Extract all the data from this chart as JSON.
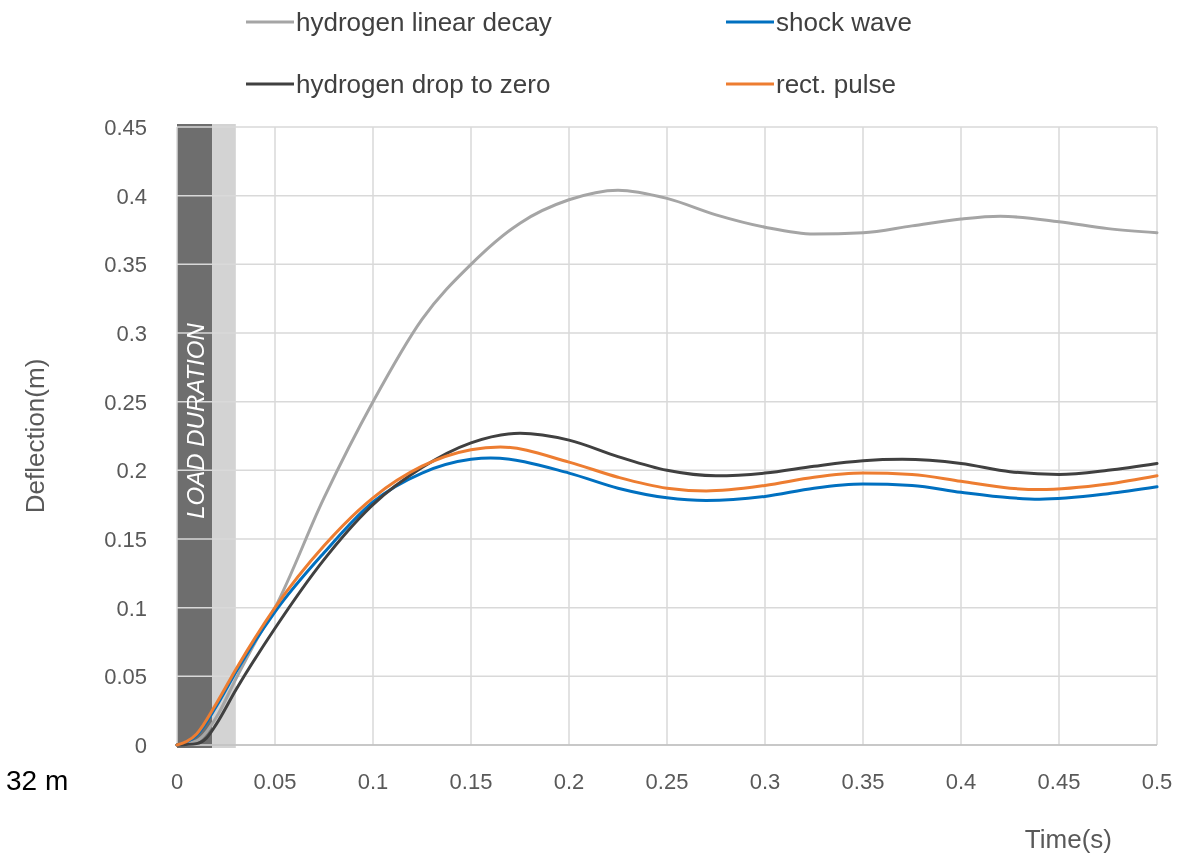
{
  "chart_data": {
    "type": "line",
    "xlabel": "Time(s)",
    "ylabel": "Deflection(m)",
    "xlim": [
      0,
      0.5
    ],
    "ylim": [
      0,
      0.45
    ],
    "xticks": [
      0,
      0.05,
      0.1,
      0.15,
      0.2,
      0.25,
      0.3,
      0.35,
      0.4,
      0.45,
      0.5
    ],
    "yticks": [
      0,
      0.05,
      0.1,
      0.15,
      0.2,
      0.25,
      0.3,
      0.35,
      0.4,
      0.45
    ],
    "grid": true,
    "legend": "top",
    "line_style": "solid",
    "marker": "none",
    "bands": [
      {
        "axis": "x",
        "from": 0,
        "to": 0.018,
        "color": "#6e6e6e"
      },
      {
        "axis": "x",
        "from": 0.018,
        "to": 0.03,
        "color": "#d3d3d3"
      }
    ],
    "annotations": [
      "LOAD DURATION",
      "32 m"
    ],
    "series": [
      {
        "name": "hydrogen linear decay",
        "color": "#a5a5a5",
        "x": [
          0,
          0.01,
          0.02,
          0.03,
          0.04,
          0.05,
          0.075,
          0.1,
          0.125,
          0.15,
          0.175,
          0.2,
          0.225,
          0.25,
          0.275,
          0.3,
          0.325,
          0.35,
          0.375,
          0.4,
          0.42,
          0.45,
          0.475,
          0.5
        ],
        "values": [
          0,
          0.003,
          0.02,
          0.048,
          0.075,
          0.1,
          0.18,
          0.25,
          0.31,
          0.35,
          0.38,
          0.397,
          0.404,
          0.398,
          0.386,
          0.377,
          0.372,
          0.373,
          0.378,
          0.383,
          0.385,
          0.381,
          0.376,
          0.373
        ]
      },
      {
        "name": "shock wave",
        "color": "#0070c0",
        "x": [
          0,
          0.01,
          0.02,
          0.03,
          0.05,
          0.075,
          0.1,
          0.125,
          0.15,
          0.16,
          0.2,
          0.225,
          0.25,
          0.27,
          0.3,
          0.325,
          0.35,
          0.375,
          0.4,
          0.425,
          0.44,
          0.475,
          0.5
        ],
        "values": [
          0,
          0.007,
          0.028,
          0.053,
          0.097,
          0.14,
          0.177,
          0.198,
          0.208,
          0.209,
          0.198,
          0.187,
          0.18,
          0.178,
          0.181,
          0.187,
          0.19,
          0.189,
          0.184,
          0.18,
          0.179,
          0.183,
          0.188
        ]
      },
      {
        "name": "hydrogen drop to zero",
        "color": "#404040",
        "x": [
          0,
          0.01,
          0.015,
          0.02,
          0.03,
          0.05,
          0.075,
          0.1,
          0.125,
          0.15,
          0.175,
          0.2,
          0.225,
          0.25,
          0.275,
          0.3,
          0.325,
          0.35,
          0.37,
          0.4,
          0.425,
          0.45,
          0.475,
          0.5
        ],
        "values": [
          0,
          0.001,
          0.005,
          0.015,
          0.04,
          0.085,
          0.135,
          0.175,
          0.202,
          0.22,
          0.227,
          0.222,
          0.21,
          0.2,
          0.196,
          0.198,
          0.203,
          0.207,
          0.208,
          0.205,
          0.199,
          0.197,
          0.2,
          0.205
        ]
      },
      {
        "name": "rect. pulse",
        "color": "#ed7d31",
        "x": [
          0,
          0.01,
          0.02,
          0.03,
          0.05,
          0.075,
          0.1,
          0.125,
          0.15,
          0.165,
          0.2,
          0.225,
          0.25,
          0.27,
          0.3,
          0.325,
          0.35,
          0.375,
          0.4,
          0.425,
          0.44,
          0.475,
          0.5
        ],
        "values": [
          0,
          0.008,
          0.03,
          0.055,
          0.1,
          0.145,
          0.18,
          0.203,
          0.215,
          0.217,
          0.206,
          0.195,
          0.187,
          0.185,
          0.189,
          0.195,
          0.198,
          0.197,
          0.192,
          0.187,
          0.186,
          0.19,
          0.196
        ]
      }
    ]
  }
}
